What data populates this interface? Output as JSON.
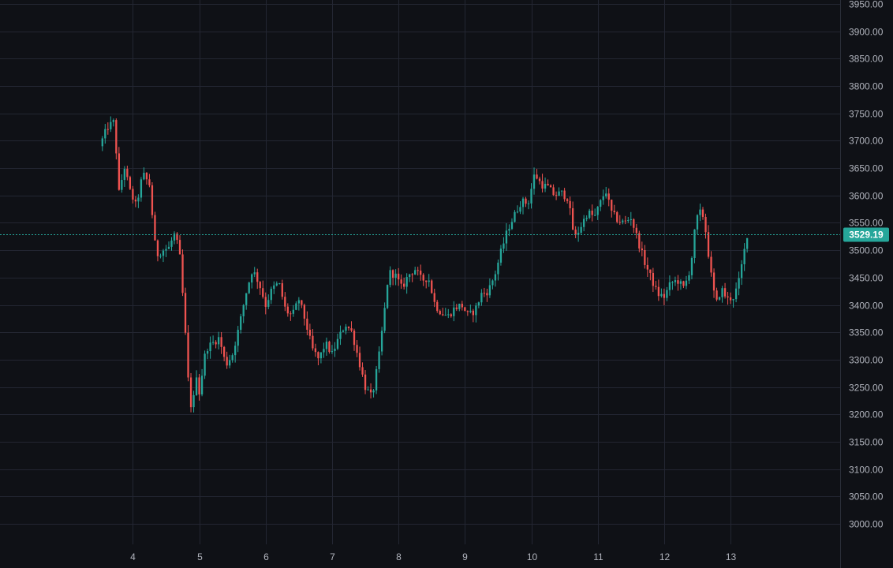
{
  "chart_data": {
    "type": "candlestick",
    "title": "",
    "xlabel": "",
    "ylabel": "",
    "ylim": [
      3000,
      3950
    ],
    "y_ticks": [
      "3000.00",
      "3050.00",
      "3100.00",
      "3150.00",
      "3200.00",
      "3250.00",
      "3300.00",
      "3350.00",
      "3400.00",
      "3450.00",
      "3500.00",
      "3550.00",
      "3600.00",
      "3650.00",
      "3700.00",
      "3750.00",
      "3800.00",
      "3850.00",
      "3900.00",
      "3950.00"
    ],
    "x_ticks": [
      "4",
      "5",
      "6",
      "7",
      "8",
      "9",
      "10",
      "11",
      "12",
      "13"
    ],
    "x_tick_days": [
      4,
      5,
      6,
      7,
      8,
      9,
      10,
      11,
      12,
      13
    ],
    "x_range": [
      2.0,
      14.65
    ],
    "grid": true,
    "last_price": 3529.19,
    "last_price_label": "3529.19",
    "colors": {
      "background": "#0f1116",
      "grid": "#232632",
      "up": "#26a69a",
      "down": "#ef5350",
      "axis_text": "#b2b5be",
      "price_line": "#26a69a"
    },
    "close_path": [
      [
        3.5,
        3690
      ],
      [
        3.62,
        3725
      ],
      [
        3.72,
        3735
      ],
      [
        3.8,
        3590
      ],
      [
        3.86,
        3660
      ],
      [
        3.95,
        3610
      ],
      [
        4.05,
        3580
      ],
      [
        4.15,
        3640
      ],
      [
        4.25,
        3620
      ],
      [
        4.35,
        3490
      ],
      [
        4.45,
        3500
      ],
      [
        4.55,
        3505
      ],
      [
        4.62,
        3530
      ],
      [
        4.7,
        3500
      ],
      [
        4.75,
        3420
      ],
      [
        4.8,
        3330
      ],
      [
        4.85,
        3230
      ],
      [
        4.9,
        3205
      ],
      [
        4.95,
        3280
      ],
      [
        5.0,
        3240
      ],
      [
        5.1,
        3320
      ],
      [
        5.2,
        3330
      ],
      [
        5.3,
        3340
      ],
      [
        5.4,
        3290
      ],
      [
        5.5,
        3310
      ],
      [
        5.6,
        3360
      ],
      [
        5.7,
        3420
      ],
      [
        5.8,
        3465
      ],
      [
        5.9,
        3440
      ],
      [
        6.0,
        3400
      ],
      [
        6.1,
        3430
      ],
      [
        6.2,
        3440
      ],
      [
        6.3,
        3390
      ],
      [
        6.4,
        3380
      ],
      [
        6.5,
        3410
      ],
      [
        6.6,
        3370
      ],
      [
        6.7,
        3320
      ],
      [
        6.8,
        3300
      ],
      [
        6.9,
        3330
      ],
      [
        7.0,
        3310
      ],
      [
        7.1,
        3340
      ],
      [
        7.2,
        3365
      ],
      [
        7.3,
        3350
      ],
      [
        7.4,
        3300
      ],
      [
        7.5,
        3250
      ],
      [
        7.6,
        3230
      ],
      [
        7.7,
        3300
      ],
      [
        7.8,
        3400
      ],
      [
        7.85,
        3460
      ],
      [
        7.95,
        3455
      ],
      [
        8.05,
        3430
      ],
      [
        8.15,
        3455
      ],
      [
        8.25,
        3465
      ],
      [
        8.35,
        3445
      ],
      [
        8.45,
        3450
      ],
      [
        8.55,
        3400
      ],
      [
        8.65,
        3385
      ],
      [
        8.75,
        3380
      ],
      [
        8.85,
        3395
      ],
      [
        8.95,
        3400
      ],
      [
        9.05,
        3380
      ],
      [
        9.15,
        3390
      ],
      [
        9.25,
        3420
      ],
      [
        9.35,
        3425
      ],
      [
        9.45,
        3455
      ],
      [
        9.55,
        3500
      ],
      [
        9.65,
        3540
      ],
      [
        9.75,
        3565
      ],
      [
        9.85,
        3590
      ],
      [
        9.95,
        3585
      ],
      [
        10.05,
        3640
      ],
      [
        10.15,
        3620
      ],
      [
        10.25,
        3615
      ],
      [
        10.35,
        3600
      ],
      [
        10.45,
        3605
      ],
      [
        10.55,
        3595
      ],
      [
        10.65,
        3520
      ],
      [
        10.75,
        3545
      ],
      [
        10.85,
        3570
      ],
      [
        10.95,
        3560
      ],
      [
        11.05,
        3590
      ],
      [
        11.12,
        3610
      ],
      [
        11.2,
        3570
      ],
      [
        11.3,
        3555
      ],
      [
        11.4,
        3550
      ],
      [
        11.5,
        3560
      ],
      [
        11.6,
        3520
      ],
      [
        11.7,
        3480
      ],
      [
        11.8,
        3450
      ],
      [
        11.9,
        3420
      ],
      [
        12.0,
        3415
      ],
      [
        12.1,
        3440
      ],
      [
        12.2,
        3445
      ],
      [
        12.3,
        3430
      ],
      [
        12.4,
        3470
      ],
      [
        12.48,
        3555
      ],
      [
        12.55,
        3570
      ],
      [
        12.6,
        3560
      ],
      [
        12.65,
        3510
      ],
      [
        12.7,
        3460
      ],
      [
        12.78,
        3400
      ],
      [
        12.86,
        3430
      ],
      [
        12.95,
        3410
      ],
      [
        13.05,
        3415
      ],
      [
        13.12,
        3440
      ],
      [
        13.18,
        3480
      ],
      [
        13.25,
        3529
      ]
    ]
  }
}
